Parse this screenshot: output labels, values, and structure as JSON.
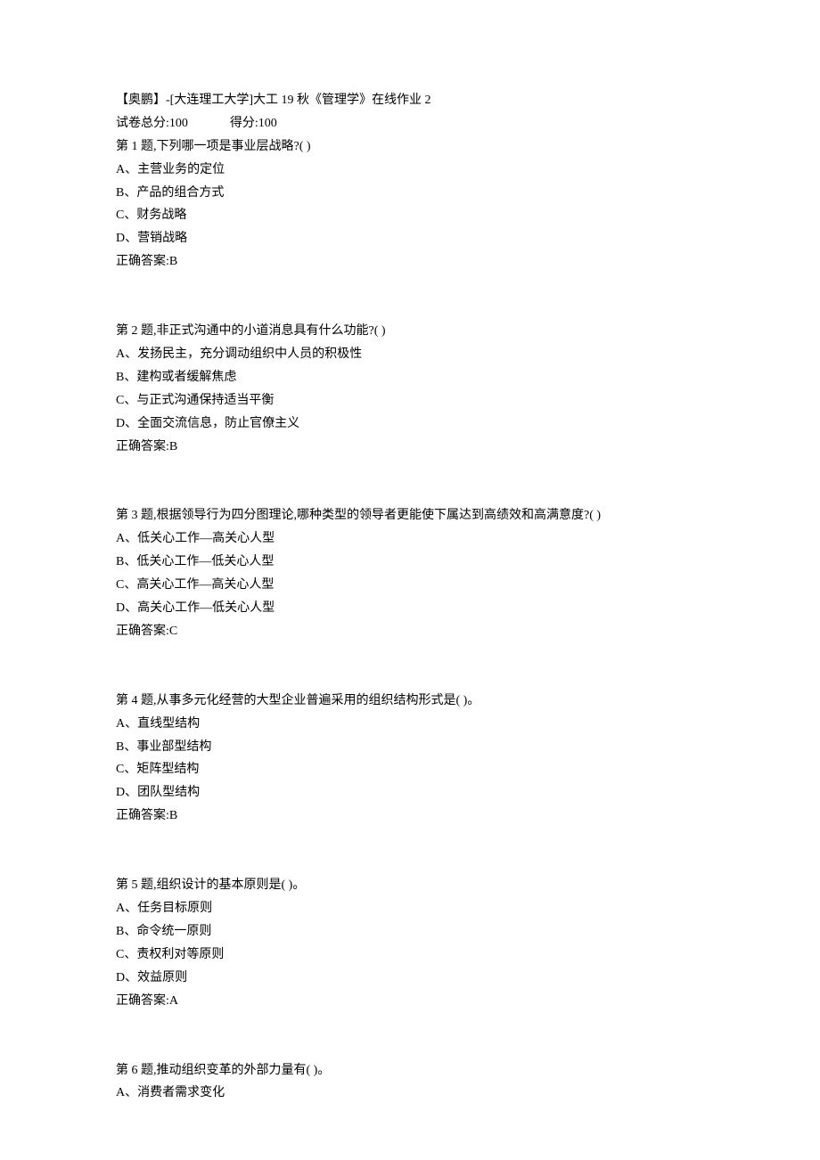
{
  "header": {
    "title": "【奥鹏】-[大连理工大学]大工 19 秋《管理学》在线作业 2",
    "totalScoreLabel": "试卷总分:100",
    "earnedScoreLabel": "得分:100"
  },
  "questions": [
    {
      "stem": "第 1 题,下列哪一项是事业层战略?(   )",
      "options": [
        "A、主营业务的定位",
        "B、产品的组合方式",
        "C、财务战略",
        "D、营销战略"
      ],
      "answer": "正确答案:B"
    },
    {
      "stem": "第 2 题,非正式沟通中的小道消息具有什么功能?(   )",
      "options": [
        "A、发扬民主，充分调动组织中人员的积极性",
        "B、建构或者缓解焦虑",
        "C、与正式沟通保持适当平衡",
        "D、全面交流信息，防止官僚主义"
      ],
      "answer": "正确答案:B"
    },
    {
      "stem": "第 3 题,根据领导行为四分图理论,哪种类型的领导者更能使下属达到高绩效和高满意度?(   )",
      "options": [
        "A、低关心工作—高关心人型",
        "B、低关心工作—低关心人型",
        "C、高关心工作—高关心人型",
        "D、高关心工作—低关心人型"
      ],
      "answer": "正确答案:C"
    },
    {
      "stem": "第 4 题,从事多元化经营的大型企业普遍采用的组织结构形式是(   )。",
      "options": [
        "A、直线型结构",
        "B、事业部型结构",
        "C、矩阵型结构",
        "D、团队型结构"
      ],
      "answer": "正确答案:B"
    },
    {
      "stem": "第 5 题,组织设计的基本原则是(   )。",
      "options": [
        "A、任务目标原则",
        "B、命令统一原则",
        "C、责权利对等原则",
        "D、效益原则"
      ],
      "answer": "正确答案:A"
    },
    {
      "stem": "第 6 题,推动组织变革的外部力量有(    )。",
      "options": [
        "A、消费者需求变化"
      ],
      "answer": ""
    }
  ]
}
